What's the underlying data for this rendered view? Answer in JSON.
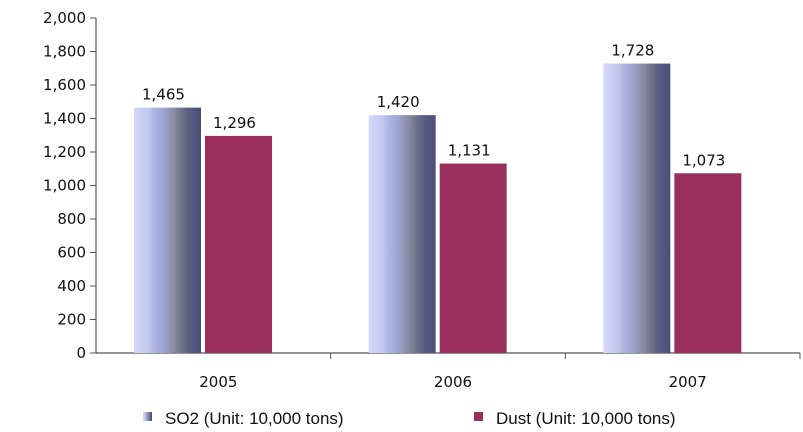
{
  "chart_data": {
    "type": "bar",
    "categories": [
      "2005",
      "2006",
      "2007"
    ],
    "series": [
      {
        "name": "SO2 (Unit: 10,000 tons)",
        "values": [
          1465,
          1420,
          1728
        ],
        "value_labels": [
          "1,465",
          "1,420",
          "1,728"
        ],
        "color": "#8a8fb8"
      },
      {
        "name": "Dust (Unit: 10,000 tons)",
        "values": [
          1296,
          1131,
          1073
        ],
        "value_labels": [
          "1,296",
          "1,131",
          "1,073"
        ],
        "color": "#9a2f5e"
      }
    ],
    "ylim": [
      0,
      2000
    ],
    "yticks": [
      0,
      200,
      400,
      600,
      800,
      1000,
      1200,
      1400,
      1600,
      1800,
      2000
    ],
    "ytick_labels": [
      "0",
      "200",
      "400",
      "600",
      "800",
      "1,000",
      "1,200",
      "1,400",
      "1,600",
      "1,800",
      "2,000"
    ],
    "title": "",
    "xlabel": "",
    "ylabel": "",
    "grid": false,
    "legend_position": "bottom"
  }
}
